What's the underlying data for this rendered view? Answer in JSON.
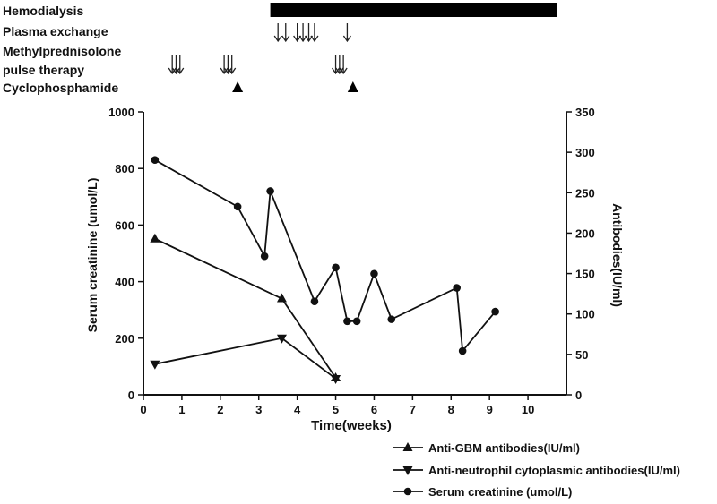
{
  "timeline": {
    "rows": [
      {
        "label": "Hemodialysis",
        "kind": "bar",
        "start": 3.3,
        "end": 10.75
      },
      {
        "label": "Plasma exchange",
        "kind": "arrows",
        "times": [
          3.5,
          3.7,
          4.0,
          4.15,
          4.3,
          4.45,
          5.3
        ]
      },
      {
        "label": "Methylprednisolone",
        "kind": "none"
      },
      {
        "label": " pulse therapy",
        "kind": "arrows",
        "times": [
          0.75,
          0.85,
          0.95,
          2.1,
          2.2,
          2.3,
          5.0,
          5.1,
          5.2
        ]
      },
      {
        "label": "Cyclophosphamide",
        "kind": "triangles",
        "times": [
          2.45,
          5.45
        ]
      }
    ]
  },
  "chart_data": {
    "type": "line",
    "xlabel": "Time(weeks)",
    "ylabel_left": "Serum creatinine (umol/L)",
    "ylabel_right": "Antibodies(IU/ml)",
    "x_ticks": [
      0,
      1,
      2,
      3,
      4,
      5,
      6,
      7,
      8,
      9,
      10
    ],
    "xlim": [
      0,
      11
    ],
    "y_left_ticks": [
      0,
      200,
      400,
      600,
      800,
      1000
    ],
    "ylim_left": [
      0,
      1000
    ],
    "y_right_ticks": [
      0,
      50,
      100,
      150,
      200,
      250,
      300,
      350
    ],
    "ylim_right": [
      0,
      350
    ],
    "grid": false,
    "legend_position": "bottom-right",
    "series": [
      {
        "name": "Anti-GBM antibodies(IU/ml)",
        "axis": "right",
        "marker": "triangle-up",
        "x": [
          0.3,
          3.6,
          5.0
        ],
        "y": [
          193,
          119,
          21
        ]
      },
      {
        "name": "Anti-neutrophil cytoplasmic antibodies(IU/ml)",
        "axis": "right",
        "marker": "triangle-down",
        "x": [
          0.3,
          3.6,
          5.0
        ],
        "y": [
          38,
          70,
          20
        ]
      },
      {
        "name": "Serum creatinine (umol/L)",
        "axis": "left",
        "marker": "circle",
        "x": [
          0.3,
          2.45,
          3.15,
          3.3,
          4.45,
          5.0,
          5.3,
          5.55,
          6.0,
          6.45,
          8.15,
          8.3,
          9.15
        ],
        "y": [
          830,
          665,
          490,
          720,
          330,
          450,
          260,
          260,
          428,
          267,
          378,
          155,
          294
        ]
      }
    ]
  }
}
